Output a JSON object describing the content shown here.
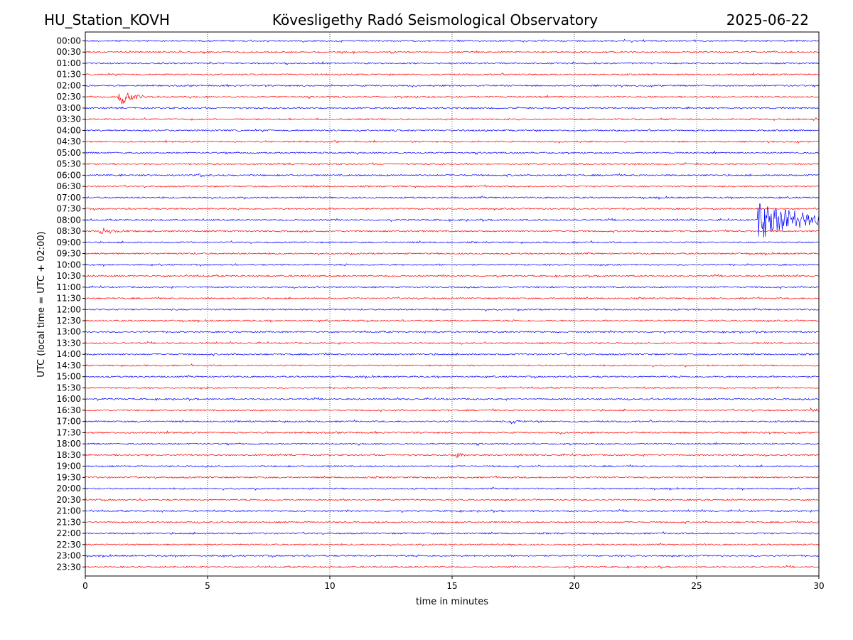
{
  "header": {
    "station": "HU_Station_KOVH",
    "observatory": "Kövesligethy Radó Seismological Observatory",
    "date": "2025-06-22"
  },
  "colors": {
    "even_row": "#0000ff",
    "odd_row": "#ff0000",
    "grid": "#000000",
    "frame": "#000000"
  },
  "chart_data": {
    "type": "line",
    "title": "Kövesligethy Radó Seismological Observatory",
    "xlabel": "time in minutes",
    "ylabel": "UTC (local time = UTC + 02:00)",
    "xlim": [
      0,
      30
    ],
    "x_ticks": [
      "0",
      "5",
      "10",
      "15",
      "20",
      "25",
      "30"
    ],
    "grid": "vertical dotted at x ticks",
    "row_labels": [
      "00:00",
      "00:30",
      "01:00",
      "01:30",
      "02:00",
      "02:30",
      "03:00",
      "03:30",
      "04:00",
      "04:30",
      "05:00",
      "05:30",
      "06:00",
      "06:30",
      "07:00",
      "07:30",
      "08:00",
      "08:30",
      "09:00",
      "09:30",
      "10:00",
      "10:30",
      "11:00",
      "11:30",
      "12:00",
      "12:30",
      "13:00",
      "13:30",
      "14:00",
      "14:30",
      "15:00",
      "15:30",
      "16:00",
      "16:30",
      "17:00",
      "17:30",
      "18:00",
      "18:30",
      "19:00",
      "19:30",
      "20:00",
      "20:30",
      "21:00",
      "21:30",
      "22:00",
      "22:30",
      "23:00",
      "23:30"
    ],
    "row_colors": "alternating blue / red",
    "events": [
      {
        "row": "02:30",
        "minute": 1.4,
        "peak_amplitude": 1.0,
        "decay_minutes": 0.4
      },
      {
        "row": "08:00",
        "minute": 27.55,
        "peak_amplitude": 2.0,
        "decay_minutes": 1.8
      },
      {
        "row": "08:30",
        "minute": 0.6,
        "peak_amplitude": 0.35,
        "decay_minutes": 0.6
      },
      {
        "row": "18:30",
        "minute": 15.2,
        "peak_amplitude": 0.3,
        "decay_minutes": 0.2
      },
      {
        "row": "16:30",
        "minute": 29.7,
        "peak_amplitude": 0.25,
        "decay_minutes": 0.3
      },
      {
        "row": "17:00",
        "minute": 17.4,
        "peak_amplitude": 0.25,
        "decay_minutes": 0.3
      },
      {
        "row": "06:00",
        "minute": 4.6,
        "peak_amplitude": 0.2,
        "decay_minutes": 0.4
      }
    ]
  }
}
